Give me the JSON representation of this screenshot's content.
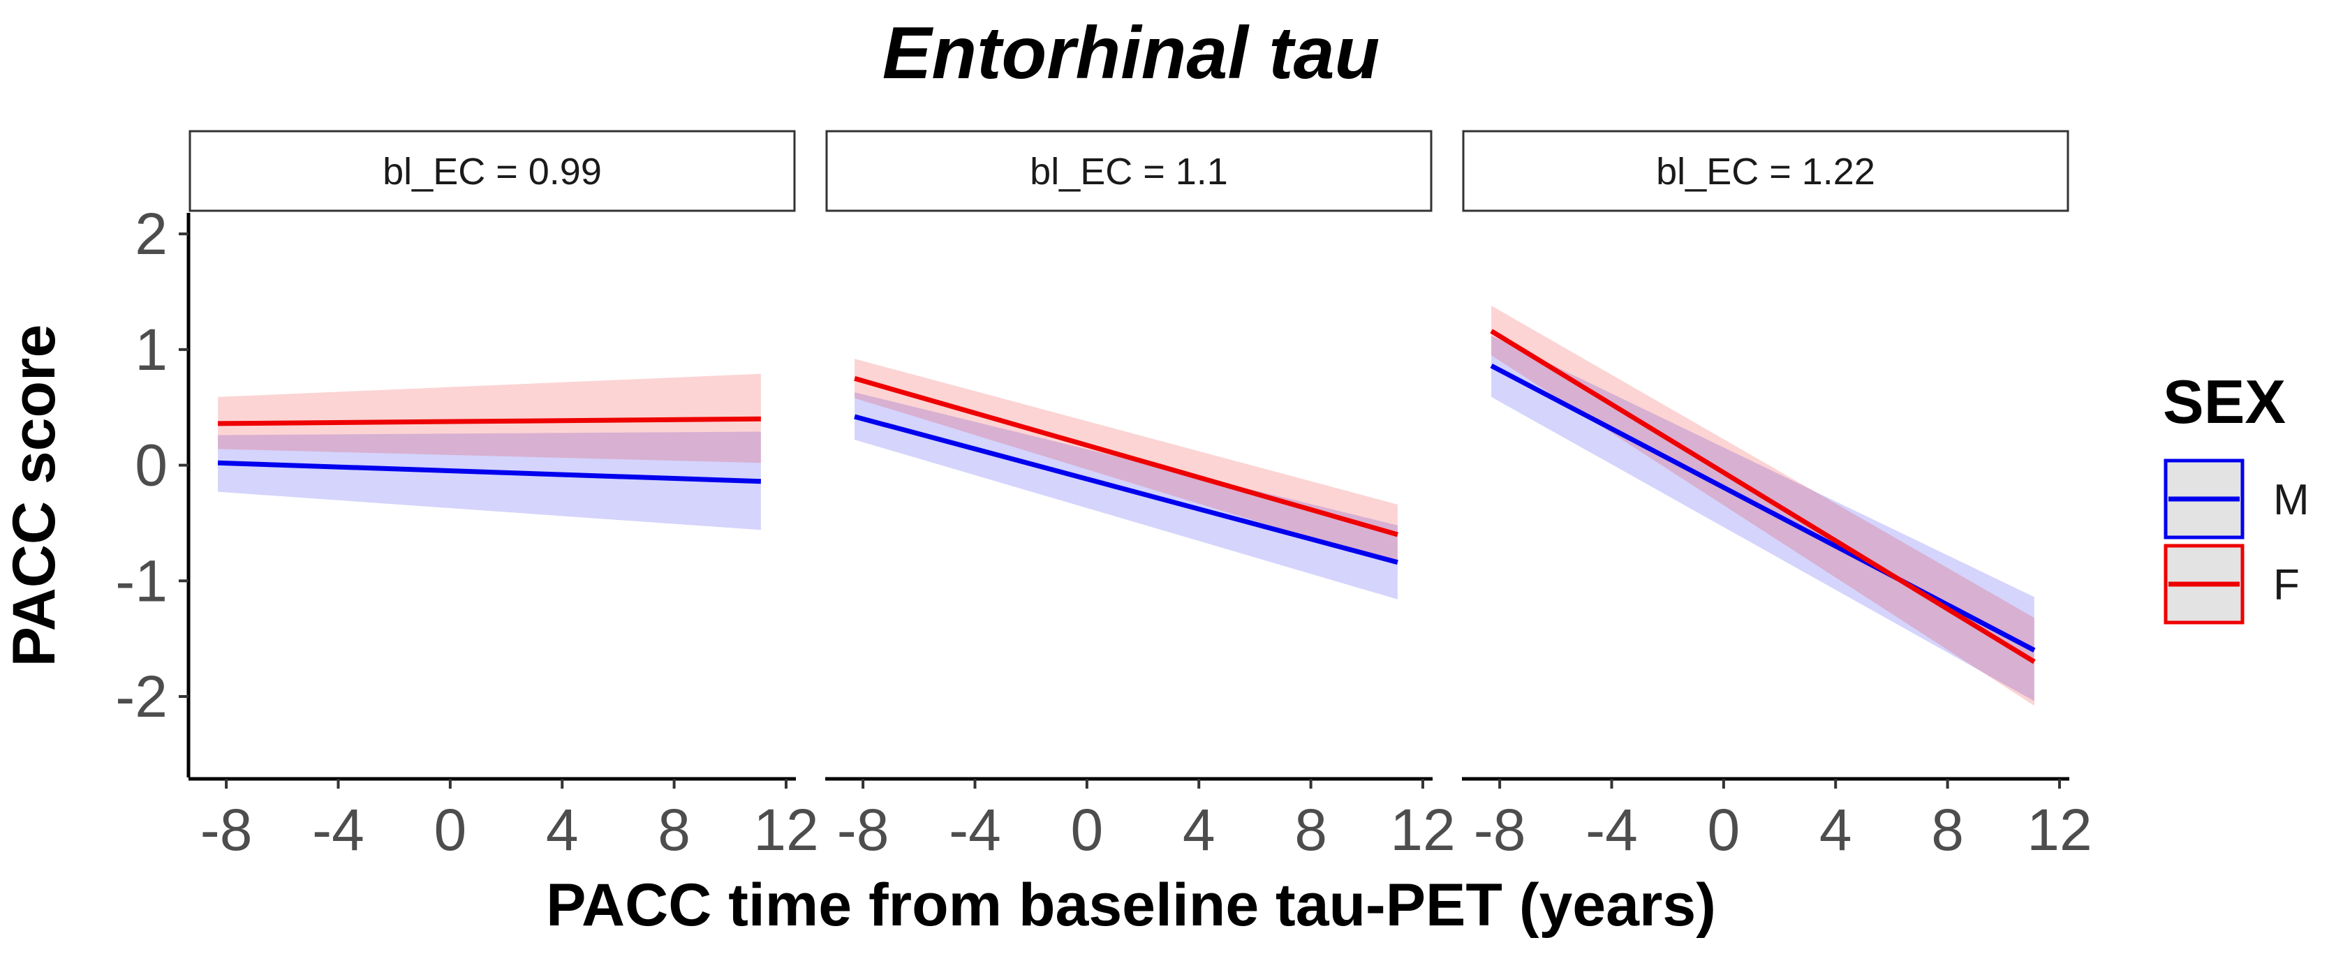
{
  "chart_data": {
    "type": "line",
    "title": "Entorhinal tau",
    "xlabel": "PACC time from baseline tau-PET (years)",
    "ylabel": "PACC score",
    "xlim": [
      -9.3,
      12.3
    ],
    "ylim": [
      -2.7,
      2.2
    ],
    "x_ticks": [
      -8,
      -4,
      0,
      4,
      8,
      12
    ],
    "y_ticks": [
      2,
      1,
      0,
      -1,
      -2
    ],
    "grid": false,
    "legend": {
      "title": "SEX",
      "placement": "right",
      "entries": [
        {
          "label": "M",
          "color": "#0000ee"
        },
        {
          "label": "F",
          "color": "#ee0000"
        }
      ]
    },
    "panels": [
      {
        "label": "bl_EC = 0.99",
        "series": [
          {
            "name": "M",
            "color": "#0000ee",
            "x": [
              -8.3,
              11.1
            ],
            "y": [
              0.02,
              -0.14
            ],
            "lower": [
              -0.23,
              -0.56
            ],
            "upper": [
              0.26,
              0.29
            ]
          },
          {
            "name": "F",
            "color": "#ee0000",
            "x": [
              -8.3,
              11.1
            ],
            "y": [
              0.36,
              0.4
            ],
            "lower": [
              0.14,
              0.02
            ],
            "upper": [
              0.59,
              0.79
            ]
          }
        ]
      },
      {
        "label": "bl_EC = 1.1",
        "series": [
          {
            "name": "M",
            "color": "#0000ee",
            "x": [
              -8.3,
              11.1
            ],
            "y": [
              0.42,
              -0.84
            ],
            "lower": [
              0.22,
              -1.16
            ],
            "upper": [
              0.63,
              -0.52
            ]
          },
          {
            "name": "F",
            "color": "#ee0000",
            "x": [
              -8.3,
              11.1
            ],
            "y": [
              0.75,
              -0.6
            ],
            "lower": [
              0.58,
              -0.86
            ],
            "upper": [
              0.92,
              -0.34
            ]
          }
        ]
      },
      {
        "label": "bl_EC = 1.22",
        "series": [
          {
            "name": "M",
            "color": "#0000ee",
            "x": [
              -8.3,
              11.1
            ],
            "y": [
              0.86,
              -1.6
            ],
            "lower": [
              0.59,
              -2.04
            ],
            "upper": [
              1.12,
              -1.14
            ]
          },
          {
            "name": "F",
            "color": "#ee0000",
            "x": [
              -8.3,
              11.1
            ],
            "y": [
              1.16,
              -1.7
            ],
            "lower": [
              0.95,
              -2.08
            ],
            "upper": [
              1.38,
              -1.32
            ]
          }
        ]
      }
    ]
  }
}
